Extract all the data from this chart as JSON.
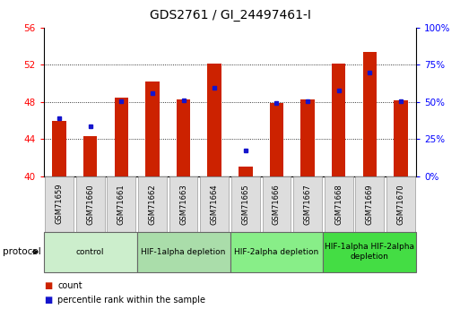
{
  "title": "GDS2761 / GI_24497461-I",
  "samples": [
    "GSM71659",
    "GSM71660",
    "GSM71661",
    "GSM71662",
    "GSM71663",
    "GSM71664",
    "GSM71665",
    "GSM71666",
    "GSM71667",
    "GSM71668",
    "GSM71669",
    "GSM71670"
  ],
  "bar_values": [
    46.0,
    44.3,
    48.5,
    50.2,
    48.3,
    52.1,
    41.0,
    47.9,
    48.3,
    52.1,
    53.4,
    48.2
  ],
  "percentile_values": [
    46.2,
    45.4,
    48.1,
    49.0,
    48.2,
    49.5,
    42.8,
    47.9,
    48.1,
    49.2,
    51.2,
    48.1
  ],
  "bar_base": 40,
  "ylim_left": [
    40,
    56
  ],
  "ylim_right": [
    0,
    100
  ],
  "yticks_left": [
    40,
    44,
    48,
    52,
    56
  ],
  "yticks_right": [
    0,
    25,
    50,
    75,
    100
  ],
  "ytick_labels_right": [
    "0%",
    "25%",
    "50%",
    "75%",
    "100%"
  ],
  "bar_color": "#CC2200",
  "dot_color": "#1414CC",
  "protocol_groups": [
    {
      "label": "control",
      "start": 0,
      "end": 2,
      "color": "#CCEECC"
    },
    {
      "label": "HIF-1alpha depletion",
      "start": 3,
      "end": 5,
      "color": "#AADDAA"
    },
    {
      "label": "HIF-2alpha depletion",
      "start": 6,
      "end": 8,
      "color": "#88EE88"
    },
    {
      "label": "HIF-1alpha HIF-2alpha\ndepletion",
      "start": 9,
      "end": 11,
      "color": "#44DD44"
    }
  ],
  "legend_items": [
    {
      "label": "count",
      "color": "#CC2200",
      "marker": "s"
    },
    {
      "label": "percentile rank within the sample",
      "color": "#1414CC",
      "marker": "s"
    }
  ],
  "protocol_label": "protocol",
  "title_fontsize": 10,
  "sample_label_fontsize": 6,
  "protocol_fontsize": 6.5,
  "legend_fontsize": 7
}
